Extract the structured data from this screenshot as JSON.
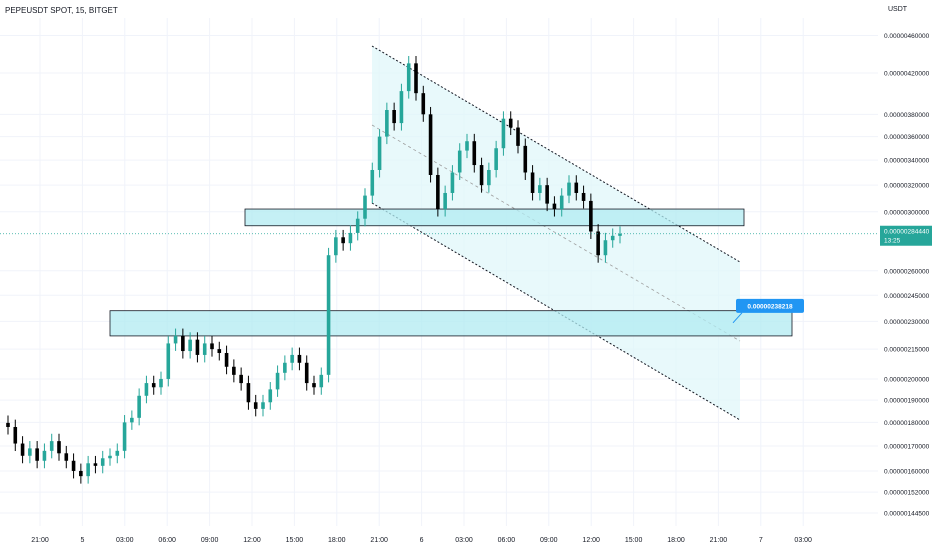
{
  "header": {
    "symbol_line": "PEPEUSDT SPOT, 15, BITGET",
    "currency": "USDT"
  },
  "price_tag": {
    "value": "0.00000284440",
    "countdown": "13:25",
    "color": "#26a69a"
  },
  "callout": {
    "label": "0.00000238218",
    "color": "#2196f3"
  },
  "colors": {
    "up": "#26a69a",
    "down": "#000000",
    "zone_fill": "#b2ebf2",
    "channel_fill": "#e0f7fa",
    "grid": "#f0f3fa"
  },
  "chart_data": {
    "type": "candlestick",
    "symbol": "PEPEUSDT SPOT",
    "interval": "15",
    "exchange": "BITGET",
    "y_axis": {
      "unit": "USDT",
      "scale": "log",
      "range": [
        1.4e-06,
        4.8e-06
      ],
      "ticks": [
        "0.00000460000",
        "0.00000420000",
        "0.00000380000",
        "0.00000360000",
        "0.00000340000",
        "0.00000320000",
        "0.00000300000",
        "0.00000260000",
        "0.00000245000",
        "0.00000230000",
        "0.00000215000",
        "0.00000200000",
        "0.00000190000",
        "0.00000180000",
        "0.00000170000",
        "0.00000160000",
        "0.00000152000",
        "0.00000144500"
      ]
    },
    "x_axis": {
      "ticks": [
        "21:00",
        "5",
        "03:00",
        "06:00",
        "09:00",
        "12:00",
        "15:00",
        "18:00",
        "21:00",
        "6",
        "03:00",
        "06:00",
        "09:00",
        "12:00",
        "15:00",
        "18:00",
        "21:00",
        "7",
        "03:00"
      ]
    },
    "last_price": 2.8444e-06,
    "candle_closes": [
      1.78e-06,
      1.71e-06,
      1.66e-06,
      1.69e-06,
      1.64e-06,
      1.68e-06,
      1.72e-06,
      1.67e-06,
      1.64e-06,
      1.6e-06,
      1.58e-06,
      1.63e-06,
      1.62e-06,
      1.65e-06,
      1.66e-06,
      1.68e-06,
      1.8e-06,
      1.82e-06,
      1.92e-06,
      1.98e-06,
      1.96e-06,
      2e-06,
      2.18e-06,
      2.22e-06,
      2.14e-06,
      2.2e-06,
      2.12e-06,
      2.18e-06,
      2.15e-06,
      2.13e-06,
      2.06e-06,
      2.02e-06,
      1.98e-06,
      1.89e-06,
      1.86e-06,
      1.89e-06,
      1.95e-06,
      2.03e-06,
      2.08e-06,
      2.12e-06,
      2.08e-06,
      1.98e-06,
      1.96e-06,
      2.02e-06,
      2.7e-06,
      2.82e-06,
      2.78e-06,
      2.85e-06,
      2.95e-06,
      3.12e-06,
      3.32e-06,
      3.6e-06,
      3.84e-06,
      3.72e-06,
      4.02e-06,
      4.3e-06,
      4e-06,
      3.8e-06,
      3.28e-06,
      3.02e-06,
      3.14e-06,
      3.3e-06,
      3.48e-06,
      3.56e-06,
      3.36e-06,
      3.2e-06,
      3.32e-06,
      3.5e-06,
      3.76e-06,
      3.68e-06,
      3.52e-06,
      3.3e-06,
      3.14e-06,
      3.2e-06,
      3.06e-06,
      3.02e-06,
      3.12e-06,
      3.22e-06,
      3.14e-06,
      3.08e-06,
      2.86e-06,
      2.7e-06,
      2.8e-06,
      2.83e-06,
      2.8444e-06
    ],
    "support_resistance_zones": [
      {
        "from": 2.9e-06,
        "to": 3.02e-06
      },
      {
        "from": 2.22e-06,
        "to": 2.36e-06
      }
    ],
    "projection_target": 2.38218e-06
  }
}
